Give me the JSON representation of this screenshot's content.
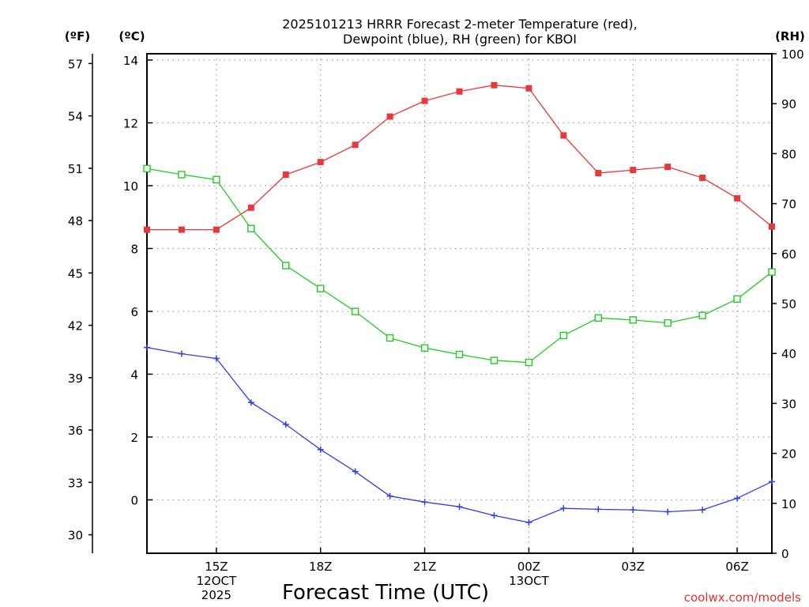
{
  "chart_data": {
    "type": "line",
    "title_lines": [
      "2025101213 HRRR Forecast 2-meter Temperature (red),",
      "Dewpoint (blue), RH (green) for KBOI"
    ],
    "xlabel": "Forecast Time (UTC)",
    "credit": "coolwx.com/models",
    "units": {
      "fahrenheit": "(ºF)",
      "celsius": "(ºC)",
      "rh": "(RH)"
    },
    "x_hours": [
      13,
      14,
      15,
      16,
      17,
      18,
      19,
      20,
      21,
      22,
      23,
      24,
      25,
      26,
      27,
      28,
      29,
      30,
      31
    ],
    "xlim": [
      13,
      31
    ],
    "x_ticks": [
      {
        "x": 15,
        "lines": [
          "15Z",
          "12OCT",
          "2025"
        ]
      },
      {
        "x": 18,
        "lines": [
          "18Z"
        ]
      },
      {
        "x": 21,
        "lines": [
          "21Z"
        ]
      },
      {
        "x": 24,
        "lines": [
          "00Z",
          "13OCT"
        ]
      },
      {
        "x": 27,
        "lines": [
          "03Z"
        ]
      },
      {
        "x": 30,
        "lines": [
          "06Z"
        ]
      }
    ],
    "celsius_axis": {
      "range": [
        -1.7,
        14.2
      ],
      "ticks": [
        0,
        2,
        4,
        6,
        8,
        10,
        12,
        14
      ]
    },
    "fahrenheit_axis": {
      "ticks": [
        30,
        33,
        36,
        39,
        42,
        45,
        48,
        51,
        54,
        57
      ]
    },
    "rh_axis": {
      "range": [
        0,
        100
      ],
      "ticks": [
        0,
        10,
        20,
        30,
        40,
        50,
        60,
        70,
        80,
        90,
        100
      ]
    },
    "series": [
      {
        "name": "Temperature",
        "axis": "celsius",
        "color": "#e8383b",
        "marker": "filled-square",
        "values": [
          8.6,
          8.6,
          8.6,
          9.3,
          10.35,
          10.75,
          11.3,
          12.2,
          12.7,
          13.0,
          13.2,
          13.1,
          11.6,
          10.4,
          10.5,
          10.6,
          10.25,
          9.6,
          8.7
        ]
      },
      {
        "name": "Dewpoint",
        "axis": "celsius",
        "color": "#2f3fe8",
        "marker": "plus",
        "values": [
          4.85,
          4.65,
          4.5,
          3.1,
          2.4,
          1.6,
          0.9,
          0.12,
          -0.07,
          -0.22,
          -0.5,
          -0.72,
          -0.27,
          -0.3,
          -0.32,
          -0.38,
          -0.32,
          0.05,
          0.58
        ]
      },
      {
        "name": "RH",
        "axis": "rh",
        "color": "#22cc22",
        "marker": "open-square",
        "values": [
          77,
          75.8,
          74.8,
          65,
          57.6,
          53,
          48.4,
          43.1,
          41.1,
          39.8,
          38.6,
          38.2,
          43.6,
          47.1,
          46.7,
          46.1,
          47.6,
          50.9,
          56.3
        ]
      }
    ]
  }
}
